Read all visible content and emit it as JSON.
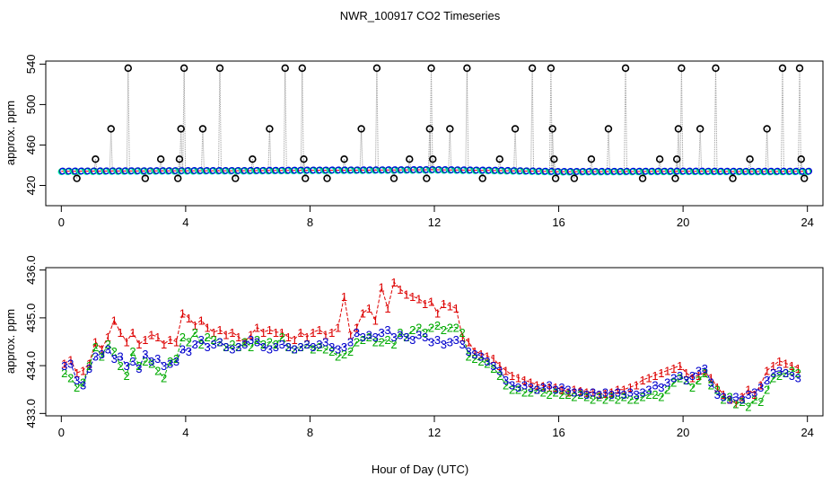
{
  "chart_data": [
    {
      "panel": "top",
      "type": "scatter",
      "title": "NWR_100917  CO2 Timeseries",
      "xlabel": "",
      "ylabel": "approx. ppm",
      "xlim": [
        -0.5,
        24.5
      ],
      "ylim": [
        400,
        543
      ],
      "xticks": [
        0,
        4,
        8,
        12,
        16,
        20,
        24
      ],
      "yticks": [
        420,
        460,
        500,
        540
      ],
      "baseline_points": 120,
      "baseline_series": [
        {
          "name": "cyan",
          "color": "#00e5ee"
        },
        {
          "name": "green",
          "color": "#00bb00"
        },
        {
          "name": "blue",
          "color": "#0000ee"
        }
      ],
      "trend_color": "#ff0000",
      "trend": {
        "x": [
          0,
          2,
          4,
          6,
          8,
          10,
          12,
          14,
          16,
          18,
          20,
          22,
          24
        ],
        "y": [
          434,
          434.3,
          434.5,
          434.6,
          435,
          435.2,
          435.5,
          434.8,
          433.6,
          433.8,
          434,
          433.8,
          433.9
        ]
      },
      "spike_color": "#000000",
      "spikes": [
        {
          "x": 0.5,
          "y": 427
        },
        {
          "x": 1.1,
          "y": 446
        },
        {
          "x": 1.6,
          "y": 476
        },
        {
          "x": 2.15,
          "y": 536
        },
        {
          "x": 2.7,
          "y": 427
        },
        {
          "x": 3.2,
          "y": 446
        },
        {
          "x": 3.75,
          "y": 427
        },
        {
          "x": 3.8,
          "y": 446
        },
        {
          "x": 3.85,
          "y": 476
        },
        {
          "x": 3.95,
          "y": 536
        },
        {
          "x": 4.55,
          "y": 476
        },
        {
          "x": 5.1,
          "y": 536
        },
        {
          "x": 5.6,
          "y": 427
        },
        {
          "x": 6.15,
          "y": 446
        },
        {
          "x": 6.7,
          "y": 476
        },
        {
          "x": 7.2,
          "y": 536
        },
        {
          "x": 7.75,
          "y": 536
        },
        {
          "x": 7.8,
          "y": 446
        },
        {
          "x": 7.85,
          "y": 427
        },
        {
          "x": 8.55,
          "y": 427
        },
        {
          "x": 9.1,
          "y": 446
        },
        {
          "x": 9.65,
          "y": 476
        },
        {
          "x": 10.15,
          "y": 536
        },
        {
          "x": 10.7,
          "y": 427
        },
        {
          "x": 11.2,
          "y": 446
        },
        {
          "x": 11.75,
          "y": 427
        },
        {
          "x": 11.85,
          "y": 476
        },
        {
          "x": 11.9,
          "y": 536
        },
        {
          "x": 11.95,
          "y": 446
        },
        {
          "x": 12.5,
          "y": 476
        },
        {
          "x": 13.05,
          "y": 536
        },
        {
          "x": 13.55,
          "y": 427
        },
        {
          "x": 14.1,
          "y": 446
        },
        {
          "x": 14.6,
          "y": 476
        },
        {
          "x": 15.15,
          "y": 536
        },
        {
          "x": 15.75,
          "y": 536
        },
        {
          "x": 15.8,
          "y": 476
        },
        {
          "x": 15.85,
          "y": 446
        },
        {
          "x": 15.9,
          "y": 427
        },
        {
          "x": 16.5,
          "y": 427
        },
        {
          "x": 17.05,
          "y": 446
        },
        {
          "x": 17.6,
          "y": 476
        },
        {
          "x": 18.15,
          "y": 536
        },
        {
          "x": 18.7,
          "y": 427
        },
        {
          "x": 19.25,
          "y": 446
        },
        {
          "x": 19.75,
          "y": 427
        },
        {
          "x": 19.8,
          "y": 446
        },
        {
          "x": 19.85,
          "y": 476
        },
        {
          "x": 19.95,
          "y": 536
        },
        {
          "x": 20.55,
          "y": 476
        },
        {
          "x": 21.05,
          "y": 536
        },
        {
          "x": 21.6,
          "y": 427
        },
        {
          "x": 22.15,
          "y": 446
        },
        {
          "x": 22.7,
          "y": 476
        },
        {
          "x": 23.2,
          "y": 536
        },
        {
          "x": 23.75,
          "y": 536
        },
        {
          "x": 23.8,
          "y": 446
        },
        {
          "x": 23.9,
          "y": 427
        }
      ]
    },
    {
      "panel": "bottom",
      "type": "line",
      "title": "",
      "xlabel": "Hour of Day (UTC)",
      "ylabel": "approx. ppm",
      "xlim": [
        -0.5,
        24.5
      ],
      "ylim": [
        432.95,
        436.05
      ],
      "xticks": [
        0,
        4,
        8,
        12,
        16,
        20,
        24
      ],
      "yticks": [
        433.0,
        434.0,
        435.0,
        436.0
      ],
      "ytick_labels": [
        "433.0",
        "434.0",
        "435.0",
        "436.0"
      ],
      "series": [
        {
          "name": "1",
          "symbol": "1",
          "color": "#dd0000",
          "x": [
            0.1,
            0.3,
            0.5,
            0.7,
            0.9,
            1.1,
            1.3,
            1.5,
            1.7,
            1.9,
            2.1,
            2.3,
            2.5,
            2.7,
            2.9,
            3.1,
            3.3,
            3.5,
            3.7,
            3.9,
            4.1,
            4.3,
            4.5,
            4.7,
            4.9,
            5.1,
            5.3,
            5.5,
            5.7,
            5.9,
            6.1,
            6.3,
            6.5,
            6.7,
            6.9,
            7.1,
            7.3,
            7.5,
            7.7,
            7.9,
            8.1,
            8.3,
            8.5,
            8.7,
            8.9,
            9.1,
            9.3,
            9.5,
            9.7,
            9.9,
            10.1,
            10.3,
            10.5,
            10.7,
            10.9,
            11.1,
            11.3,
            11.5,
            11.7,
            11.9,
            12.1,
            12.3,
            12.5,
            12.7,
            12.9,
            13.1,
            13.3,
            13.5,
            13.7,
            13.9,
            14.1,
            14.3,
            14.5,
            14.7,
            14.9,
            15.1,
            15.3,
            15.5,
            15.7,
            15.9,
            16.1,
            16.3,
            16.5,
            16.7,
            16.9,
            17.1,
            17.3,
            17.5,
            17.7,
            17.9,
            18.1,
            18.3,
            18.5,
            18.7,
            18.9,
            19.1,
            19.3,
            19.5,
            19.7,
            19.9,
            20.1,
            20.3,
            20.5,
            20.7,
            20.9,
            21.1,
            21.3,
            21.5,
            21.7,
            21.9,
            22.1,
            22.3,
            22.5,
            22.7,
            22.9,
            23.1,
            23.3,
            23.5,
            23.7
          ],
          "values": [
            434.05,
            434.12,
            433.85,
            433.9,
            434.05,
            434.5,
            434.35,
            434.6,
            434.95,
            434.7,
            434.5,
            434.7,
            434.45,
            434.55,
            434.65,
            434.6,
            434.45,
            434.55,
            434.5,
            435.1,
            435.0,
            434.85,
            434.95,
            434.8,
            434.7,
            434.75,
            434.65,
            434.7,
            434.6,
            434.5,
            434.65,
            434.8,
            434.7,
            434.75,
            434.7,
            434.7,
            434.6,
            434.55,
            434.7,
            434.6,
            434.7,
            434.75,
            434.65,
            434.7,
            434.8,
            435.45,
            434.65,
            434.8,
            435.1,
            435.2,
            434.95,
            435.65,
            435.2,
            435.75,
            435.6,
            435.5,
            435.45,
            435.4,
            435.3,
            435.35,
            435.1,
            435.3,
            435.25,
            435.2,
            434.6,
            434.5,
            434.3,
            434.25,
            434.2,
            434.15,
            434.0,
            433.9,
            433.8,
            433.75,
            433.7,
            433.65,
            433.6,
            433.58,
            433.55,
            433.55,
            433.5,
            433.45,
            433.5,
            433.48,
            433.45,
            433.45,
            433.4,
            433.42,
            433.45,
            433.5,
            433.5,
            433.55,
            433.6,
            433.7,
            433.75,
            433.8,
            433.85,
            433.9,
            433.95,
            434.0,
            433.85,
            433.75,
            433.8,
            433.85,
            433.75,
            433.55,
            433.4,
            433.3,
            433.2,
            433.35,
            433.5,
            433.4,
            433.6,
            433.9,
            434.0,
            434.1,
            434.05,
            434.0,
            433.95
          ]
        },
        {
          "name": "2",
          "symbol": "2",
          "color": "#00aa00",
          "x": [
            0.1,
            0.3,
            0.5,
            0.7,
            0.9,
            1.1,
            1.3,
            1.5,
            1.7,
            1.9,
            2.1,
            2.3,
            2.5,
            2.7,
            2.9,
            3.1,
            3.3,
            3.5,
            3.7,
            3.9,
            4.1,
            4.3,
            4.5,
            4.7,
            4.9,
            5.1,
            5.3,
            5.5,
            5.7,
            5.9,
            6.1,
            6.3,
            6.5,
            6.7,
            6.9,
            7.1,
            7.3,
            7.5,
            7.7,
            7.9,
            8.1,
            8.3,
            8.5,
            8.7,
            8.9,
            9.1,
            9.3,
            9.5,
            9.7,
            9.9,
            10.1,
            10.3,
            10.5,
            10.7,
            10.9,
            11.1,
            11.3,
            11.5,
            11.7,
            11.9,
            12.1,
            12.3,
            12.5,
            12.7,
            12.9,
            13.1,
            13.3,
            13.5,
            13.7,
            13.9,
            14.1,
            14.3,
            14.5,
            14.7,
            14.9,
            15.1,
            15.3,
            15.5,
            15.7,
            15.9,
            16.1,
            16.3,
            16.5,
            16.7,
            16.9,
            17.1,
            17.3,
            17.5,
            17.7,
            17.9,
            18.1,
            18.3,
            18.5,
            18.7,
            18.9,
            19.1,
            19.3,
            19.5,
            19.7,
            19.9,
            20.1,
            20.3,
            20.5,
            20.7,
            20.9,
            21.1,
            21.3,
            21.5,
            21.7,
            21.9,
            22.1,
            22.3,
            22.5,
            22.7,
            22.9,
            23.1,
            23.3,
            23.5,
            23.7
          ],
          "values": [
            433.85,
            433.75,
            433.55,
            433.65,
            434.0,
            434.4,
            434.2,
            434.45,
            434.3,
            434.0,
            433.8,
            434.3,
            434.0,
            434.1,
            434.05,
            433.9,
            433.75,
            434.1,
            434.15,
            434.6,
            434.5,
            434.7,
            434.45,
            434.6,
            434.55,
            434.5,
            434.4,
            434.45,
            434.4,
            434.5,
            434.4,
            434.55,
            434.45,
            434.5,
            434.45,
            434.6,
            434.4,
            434.35,
            434.4,
            434.45,
            434.35,
            434.4,
            434.35,
            434.3,
            434.2,
            434.25,
            434.3,
            434.5,
            434.55,
            434.6,
            434.5,
            434.5,
            434.55,
            434.45,
            434.7,
            434.6,
            434.75,
            434.8,
            434.7,
            434.8,
            434.85,
            434.75,
            434.8,
            434.8,
            434.7,
            434.2,
            434.15,
            434.1,
            434.05,
            433.95,
            433.8,
            433.6,
            433.5,
            433.5,
            433.45,
            433.45,
            433.5,
            433.45,
            433.4,
            433.45,
            433.4,
            433.4,
            433.35,
            433.4,
            433.35,
            433.3,
            433.35,
            433.3,
            433.35,
            433.3,
            433.35,
            433.3,
            433.3,
            433.35,
            433.4,
            433.4,
            433.35,
            433.5,
            433.65,
            433.75,
            433.7,
            433.55,
            433.7,
            433.85,
            433.6,
            433.5,
            433.3,
            433.35,
            433.2,
            433.25,
            433.15,
            433.3,
            433.25,
            433.5,
            433.75,
            433.8,
            433.85,
            433.9,
            433.85
          ]
        },
        {
          "name": "3",
          "symbol": "3",
          "color": "#0000cc",
          "x": [
            0.1,
            0.3,
            0.5,
            0.7,
            0.9,
            1.1,
            1.3,
            1.5,
            1.7,
            1.9,
            2.1,
            2.3,
            2.5,
            2.7,
            2.9,
            3.1,
            3.3,
            3.5,
            3.7,
            3.9,
            4.1,
            4.3,
            4.5,
            4.7,
            4.9,
            5.1,
            5.3,
            5.5,
            5.7,
            5.9,
            6.1,
            6.3,
            6.5,
            6.7,
            6.9,
            7.1,
            7.3,
            7.5,
            7.7,
            7.9,
            8.1,
            8.3,
            8.5,
            8.7,
            8.9,
            9.1,
            9.3,
            9.5,
            9.7,
            9.9,
            10.1,
            10.3,
            10.5,
            10.7,
            10.9,
            11.1,
            11.3,
            11.5,
            11.7,
            11.9,
            12.1,
            12.3,
            12.5,
            12.7,
            12.9,
            13.1,
            13.3,
            13.5,
            13.7,
            13.9,
            14.1,
            14.3,
            14.5,
            14.7,
            14.9,
            15.1,
            15.3,
            15.5,
            15.7,
            15.9,
            16.1,
            16.3,
            16.5,
            16.7,
            16.9,
            17.1,
            17.3,
            17.5,
            17.7,
            17.9,
            18.1,
            18.3,
            18.5,
            18.7,
            18.9,
            19.1,
            19.3,
            19.5,
            19.7,
            19.9,
            20.1,
            20.3,
            20.5,
            20.7,
            20.9,
            21.1,
            21.3,
            21.5,
            21.7,
            21.9,
            22.1,
            22.3,
            22.5,
            22.7,
            22.9,
            23.1,
            23.3,
            23.5,
            23.7
          ],
          "values": [
            434.0,
            434.05,
            433.7,
            433.6,
            433.95,
            434.2,
            434.25,
            434.35,
            434.15,
            434.2,
            434.0,
            434.1,
            433.95,
            434.25,
            434.1,
            434.15,
            434.0,
            434.05,
            434.1,
            434.35,
            434.3,
            434.45,
            434.55,
            434.4,
            434.45,
            434.5,
            434.4,
            434.35,
            434.4,
            434.45,
            434.55,
            434.5,
            434.4,
            434.35,
            434.4,
            434.45,
            434.4,
            434.35,
            434.4,
            434.45,
            434.4,
            434.45,
            434.5,
            434.4,
            434.35,
            434.4,
            434.5,
            434.7,
            434.6,
            434.65,
            434.6,
            434.7,
            434.75,
            434.6,
            434.65,
            434.6,
            434.55,
            434.65,
            434.6,
            434.5,
            434.55,
            434.45,
            434.5,
            434.55,
            434.45,
            434.3,
            434.25,
            434.2,
            434.1,
            434.0,
            433.9,
            433.7,
            433.6,
            433.55,
            433.6,
            433.55,
            433.5,
            433.55,
            433.6,
            433.5,
            433.55,
            433.5,
            433.45,
            433.45,
            433.4,
            433.45,
            433.4,
            433.45,
            433.4,
            433.45,
            433.4,
            433.45,
            433.4,
            433.45,
            433.5,
            433.6,
            433.55,
            433.65,
            433.75,
            433.8,
            433.7,
            433.8,
            433.9,
            433.95,
            433.65,
            433.4,
            433.35,
            433.3,
            433.35,
            433.3,
            433.4,
            433.45,
            433.55,
            433.7,
            433.85,
            433.9,
            433.85,
            433.8,
            433.75
          ]
        }
      ]
    }
  ]
}
